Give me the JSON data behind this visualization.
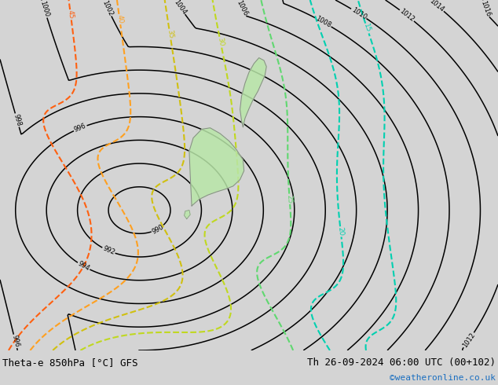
{
  "title_left": "Theta-e 850hPa [°C] GFS",
  "title_right": "Th 26-09-2024 06:00 UTC (00+102)",
  "watermark": "©weatheronline.co.uk",
  "bg_color": "#d4d4d4",
  "land_color": "#b8e6a8",
  "isobar_color": "#000000",
  "isobar_linewidth": 1.1,
  "figsize": [
    6.34,
    4.9
  ],
  "dpi": 100,
  "bottom_bar_color": "#d0d0d0"
}
